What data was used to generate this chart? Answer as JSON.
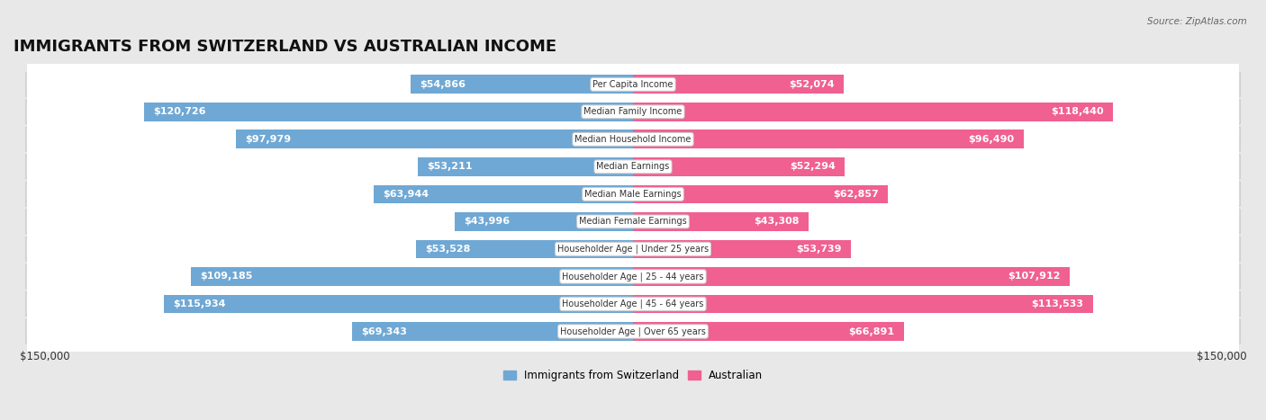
{
  "title": "IMMIGRANTS FROM SWITZERLAND VS AUSTRALIAN INCOME",
  "source": "Source: ZipAtlas.com",
  "categories": [
    "Per Capita Income",
    "Median Family Income",
    "Median Household Income",
    "Median Earnings",
    "Median Male Earnings",
    "Median Female Earnings",
    "Householder Age | Under 25 years",
    "Householder Age | 25 - 44 years",
    "Householder Age | 45 - 64 years",
    "Householder Age | Over 65 years"
  ],
  "swiss_values": [
    54866,
    120726,
    97979,
    53211,
    63944,
    43996,
    53528,
    109185,
    115934,
    69343
  ],
  "aus_values": [
    52074,
    118440,
    96490,
    52294,
    62857,
    43308,
    53739,
    107912,
    113533,
    66891
  ],
  "swiss_labels": [
    "$54,866",
    "$120,726",
    "$97,979",
    "$53,211",
    "$63,944",
    "$43,996",
    "$53,528",
    "$109,185",
    "$115,934",
    "$69,343"
  ],
  "aus_labels": [
    "$52,074",
    "$118,440",
    "$96,490",
    "$52,294",
    "$62,857",
    "$43,308",
    "$53,739",
    "$107,912",
    "$113,533",
    "$66,891"
  ],
  "max_val": 150000,
  "swiss_color_light": "#c5d9ee",
  "swiss_color_dark": "#6fa8d4",
  "aus_color_light": "#f7c5d5",
  "aus_color_dark": "#f06090",
  "row_bg_light": "#f5f5f5",
  "row_bg_dark": "#e8e8e8",
  "row_border": "#d0d0d0",
  "bg_color": "#e8e8e8",
  "title_fontsize": 13,
  "label_fontsize": 8,
  "cat_fontsize": 7,
  "legend_label_swiss": "Immigrants from Switzerland",
  "legend_label_aus": "Australian",
  "axis_label_left": "$150,000",
  "axis_label_right": "$150,000",
  "inside_label_threshold": 35000
}
